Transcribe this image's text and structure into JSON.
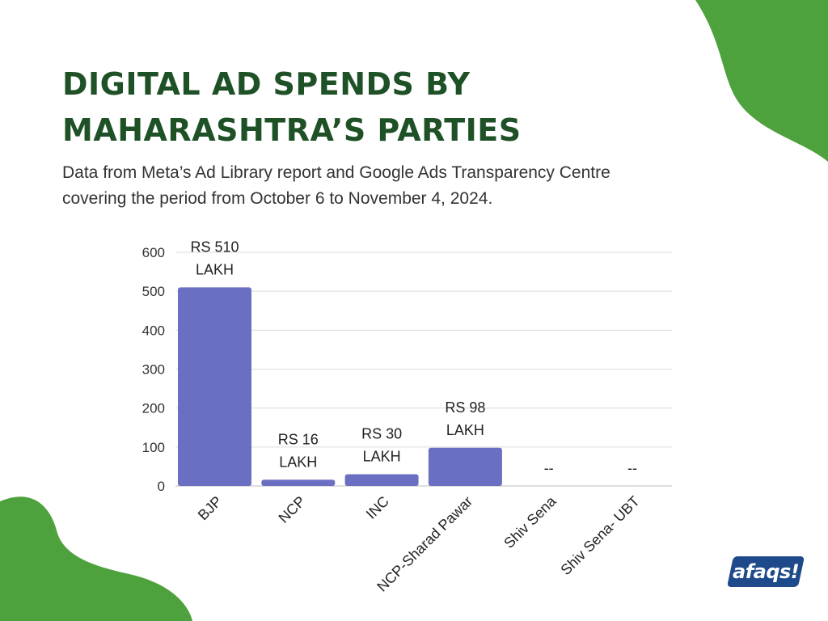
{
  "title_line1": "DIGITAL AD SPENDS BY",
  "title_line2": "MAHARASHTRA’S PARTIES",
  "subtitle_line1": "Data from Meta’s Ad Library report and Google Ads Transparency Centre",
  "subtitle_line2": "covering the period from October 6 to November 4, 2024.",
  "logo_text": "afaqs!",
  "colors": {
    "title": "#1f5127",
    "bar": "#6b6fc2",
    "blob": "#4ea23d",
    "logo": "#1e4a8c"
  },
  "chart_data": {
    "type": "bar",
    "categories": [
      "BJP",
      "NCP",
      "INC",
      "NCP-Sharad Pawar",
      "Shiv Sena",
      "Shiv Sena- UBT"
    ],
    "values": [
      510,
      16,
      30,
      98,
      0,
      0
    ],
    "data_labels": [
      [
        "RS 510",
        "LAKH"
      ],
      [
        "RS 16",
        "LAKH"
      ],
      [
        "RS 30",
        "LAKH"
      ],
      [
        "RS 98",
        "LAKH"
      ],
      [
        "--"
      ],
      [
        "--"
      ]
    ],
    "yticks": [
      0,
      100,
      200,
      300,
      400,
      500,
      600
    ],
    "ylim": [
      0,
      600
    ],
    "grid": true,
    "legend": "none"
  }
}
